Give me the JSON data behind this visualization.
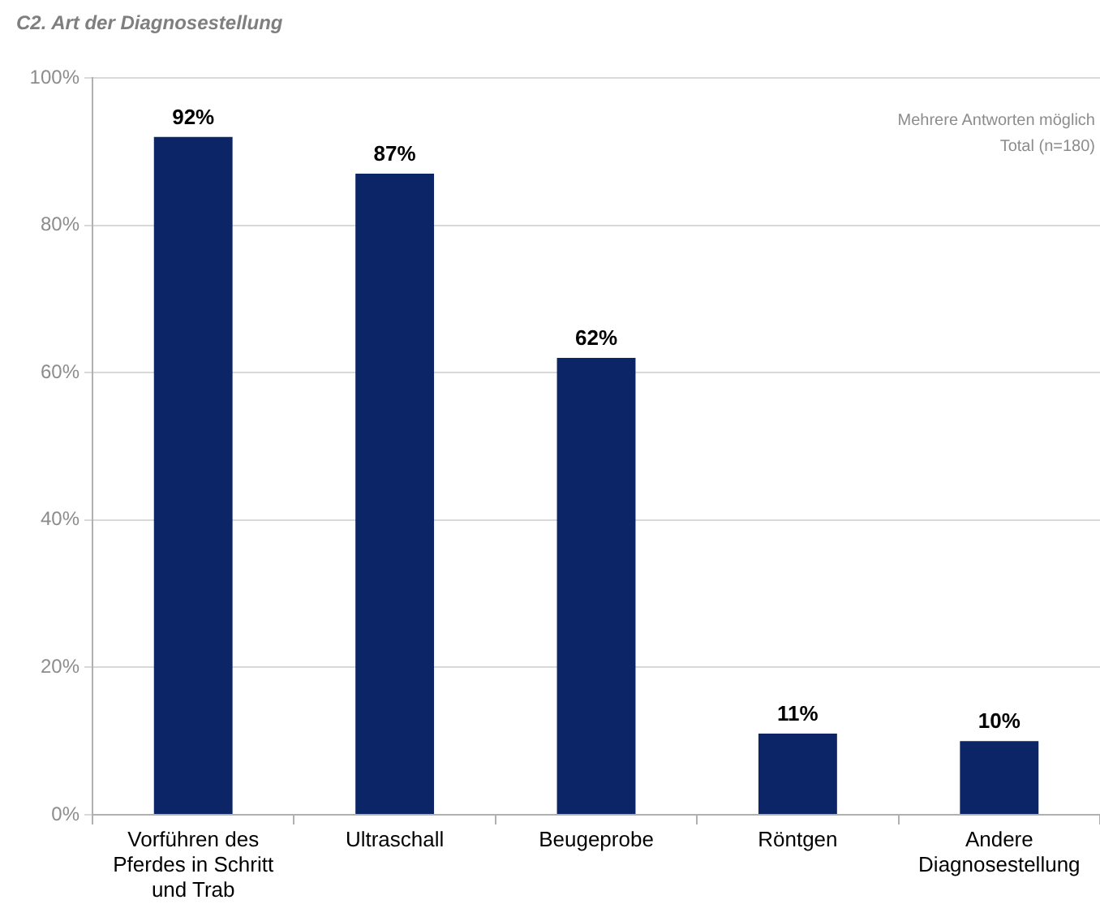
{
  "chart_data": {
    "type": "bar",
    "title": "C2. Art der Diagnosestellung",
    "categories": [
      "Vorführen des Pferdes in Schritt und Trab",
      "Ultraschall",
      "Beugeprobe",
      "Röntgen",
      "Andere Diagnosestellung"
    ],
    "values": [
      92,
      87,
      62,
      11,
      10
    ],
    "color": "#0b2566",
    "value_labels": [
      "92%",
      "87%",
      "62%",
      "11%",
      "10%"
    ],
    "ylim": [
      0,
      100
    ],
    "yticks": [
      {
        "value": 0,
        "label": "0%"
      },
      {
        "value": 20,
        "label": "20%"
      },
      {
        "value": 40,
        "label": "40%"
      },
      {
        "value": 60,
        "label": "60%"
      },
      {
        "value": 80,
        "label": "80%"
      },
      {
        "value": 100,
        "label": "100%"
      }
    ],
    "grid": "y",
    "legend": false,
    "annotations": [
      "Mehrere Antworten möglich",
      "Total (n=180)"
    ]
  }
}
